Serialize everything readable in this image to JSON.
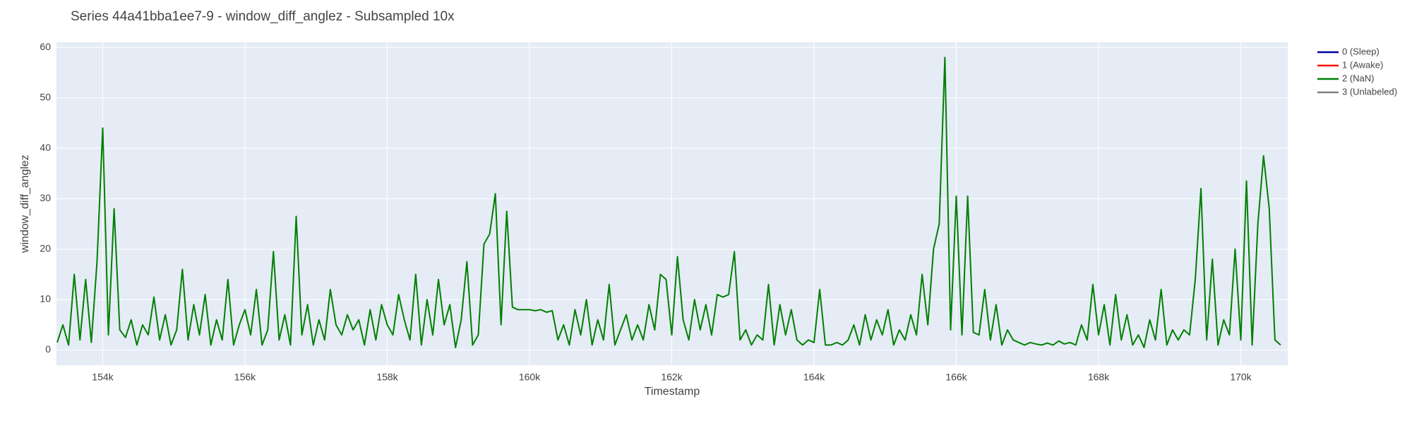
{
  "chart_data": {
    "type": "line",
    "title": "Series 44a41bba1ee7-9 - window_diff_anglez - Subsampled 10x",
    "x_label": "Timestamp",
    "y_label": "window_diff_anglez",
    "xlim": [
      153350,
      170660
    ],
    "ylim": [
      -3,
      61
    ],
    "xticks": [
      {
        "value": 154000,
        "label": "154k"
      },
      {
        "value": 156000,
        "label": "156k"
      },
      {
        "value": 158000,
        "label": "158k"
      },
      {
        "value": 160000,
        "label": "160k"
      },
      {
        "value": 162000,
        "label": "162k"
      },
      {
        "value": 164000,
        "label": "164k"
      },
      {
        "value": 166000,
        "label": "166k"
      },
      {
        "value": 168000,
        "label": "168k"
      },
      {
        "value": 170000,
        "label": "170k"
      }
    ],
    "yticks": [
      0,
      10,
      20,
      30,
      40,
      50,
      60
    ],
    "grid": true,
    "legend": "outside-right",
    "series": [
      {
        "name": "0 (Sleep)",
        "color": "#00009b",
        "x": [],
        "values": []
      },
      {
        "name": "1 (Awake)",
        "color": "#ff0000",
        "x": [],
        "values": []
      },
      {
        "name": "2 (NaN)",
        "color": "#008000",
        "x": [
          153360,
          153440,
          153520,
          153600,
          153680,
          153760,
          153840,
          153920,
          154000,
          154080,
          154160,
          154240,
          154320,
          154400,
          154480,
          154560,
          154640,
          154720,
          154800,
          154880,
          154960,
          155040,
          155120,
          155200,
          155280,
          155360,
          155440,
          155520,
          155600,
          155680,
          155760,
          155840,
          155920,
          156000,
          156080,
          156160,
          156240,
          156320,
          156400,
          156480,
          156560,
          156640,
          156720,
          156800,
          156880,
          156960,
          157040,
          157120,
          157200,
          157280,
          157360,
          157440,
          157520,
          157600,
          157680,
          157760,
          157840,
          157920,
          158000,
          158080,
          158160,
          158240,
          158320,
          158400,
          158480,
          158560,
          158640,
          158720,
          158800,
          158880,
          158960,
          159040,
          159120,
          159200,
          159280,
          159360,
          159440,
          159520,
          159600,
          159680,
          159760,
          159840,
          159920,
          160000,
          160080,
          160160,
          160240,
          160320,
          160400,
          160480,
          160560,
          160640,
          160720,
          160800,
          160880,
          160960,
          161040,
          161120,
          161200,
          161280,
          161360,
          161440,
          161520,
          161600,
          161680,
          161760,
          161840,
          161920,
          162000,
          162080,
          162160,
          162240,
          162320,
          162400,
          162480,
          162560,
          162640,
          162720,
          162800,
          162880,
          162960,
          163040,
          163120,
          163200,
          163280,
          163360,
          163440,
          163520,
          163600,
          163680,
          163760,
          163840,
          163920,
          164000,
          164080,
          164160,
          164240,
          164320,
          164400,
          164480,
          164560,
          164640,
          164720,
          164800,
          164880,
          164960,
          165040,
          165120,
          165200,
          165280,
          165360,
          165440,
          165520,
          165600,
          165680,
          165760,
          165840,
          165920,
          166000,
          166080,
          166160,
          166240,
          166320,
          166400,
          166480,
          166560,
          166640,
          166720,
          166800,
          166880,
          166960,
          167040,
          167120,
          167200,
          167280,
          167360,
          167440,
          167520,
          167600,
          167680,
          167760,
          167840,
          167920,
          168000,
          168080,
          168160,
          168240,
          168320,
          168400,
          168480,
          168560,
          168640,
          168720,
          168800,
          168880,
          168960,
          169040,
          169120,
          169200,
          169280,
          169360,
          169440,
          169520,
          169600,
          169680,
          169760,
          169840,
          169920,
          170000,
          170080,
          170160,
          170240,
          170320,
          170400,
          170480,
          170560
        ],
        "values": [
          1.5,
          5,
          1,
          15,
          2,
          14,
          1.5,
          17.5,
          44,
          3,
          28,
          4,
          2.5,
          6,
          1,
          5,
          3,
          10.5,
          2,
          7,
          1,
          4,
          16,
          2,
          9,
          3,
          11,
          1,
          6,
          2,
          14,
          1,
          5,
          8,
          3,
          12,
          1,
          4,
          19.5,
          2,
          7,
          1,
          26.5,
          3,
          9,
          1,
          6,
          2,
          12,
          5,
          3,
          7,
          4,
          6,
          1,
          8,
          2,
          9,
          5,
          3,
          11,
          6,
          2,
          15,
          1,
          10,
          3,
          14,
          5,
          9,
          0.5,
          6,
          17.5,
          1,
          3,
          21,
          23,
          31,
          5,
          27.5,
          8.5,
          8,
          8,
          8,
          7.8,
          8,
          7.5,
          7.8,
          2,
          5,
          1,
          8,
          3,
          10,
          1,
          6,
          2,
          13,
          1,
          4,
          7,
          2,
          5,
          2,
          9,
          4,
          15,
          14,
          3,
          18.5,
          6,
          2,
          10,
          4,
          9,
          3,
          11,
          10.5,
          11,
          19.5,
          2,
          4,
          1,
          3,
          2,
          13,
          1,
          9,
          3,
          8,
          2,
          1,
          2,
          1.5,
          12,
          1,
          1,
          1.5,
          1,
          2,
          5,
          1,
          7,
          2,
          6,
          3,
          8,
          1,
          4,
          2,
          7,
          3,
          15,
          5,
          20,
          25,
          58,
          4,
          30.5,
          3,
          30.5,
          3.5,
          3,
          12,
          2,
          9,
          1,
          4,
          2,
          1.5,
          1,
          1.5,
          1.2,
          1,
          1.4,
          1,
          1.8,
          1.2,
          1.5,
          1,
          5,
          2,
          13,
          3,
          9,
          1,
          11,
          2,
          7,
          1,
          3,
          0.5,
          6,
          2,
          12,
          1,
          4,
          2,
          4,
          3,
          14,
          32,
          2,
          18,
          1,
          6,
          3,
          20,
          2,
          33.5,
          1,
          25,
          38.5,
          28,
          2,
          1
        ]
      },
      {
        "name": "3 (Unlabeled)",
        "color": "#808080",
        "x": [],
        "values": []
      }
    ]
  }
}
